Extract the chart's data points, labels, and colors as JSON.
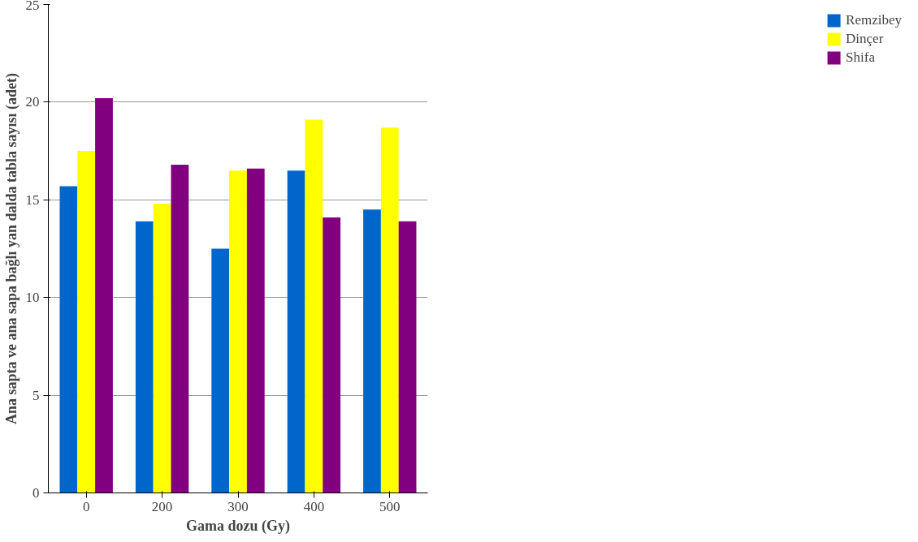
{
  "chart_data": {
    "type": "bar",
    "xlabel": "Gama dozu (Gy)",
    "ylabel": "Ana sapta ve ana sapa bağlı yan dalda tabla sayısı (adet)",
    "categories": [
      "0",
      "200",
      "300",
      "400",
      "500"
    ],
    "series": [
      {
        "name": "Remzibey",
        "color": "#0066cc",
        "values": [
          15.7,
          13.9,
          12.5,
          16.5,
          14.5
        ]
      },
      {
        "name": "Dinçer",
        "color": "#ffff00",
        "values": [
          17.5,
          14.8,
          16.5,
          19.1,
          18.7
        ]
      },
      {
        "name": "Shifa",
        "color": "#800080",
        "values": [
          20.2,
          16.8,
          16.6,
          14.1,
          13.9
        ]
      }
    ],
    "ylim": [
      0,
      25
    ],
    "yticks": [
      0,
      5,
      10,
      15,
      20,
      25
    ],
    "grid": "y",
    "legend": "right"
  }
}
